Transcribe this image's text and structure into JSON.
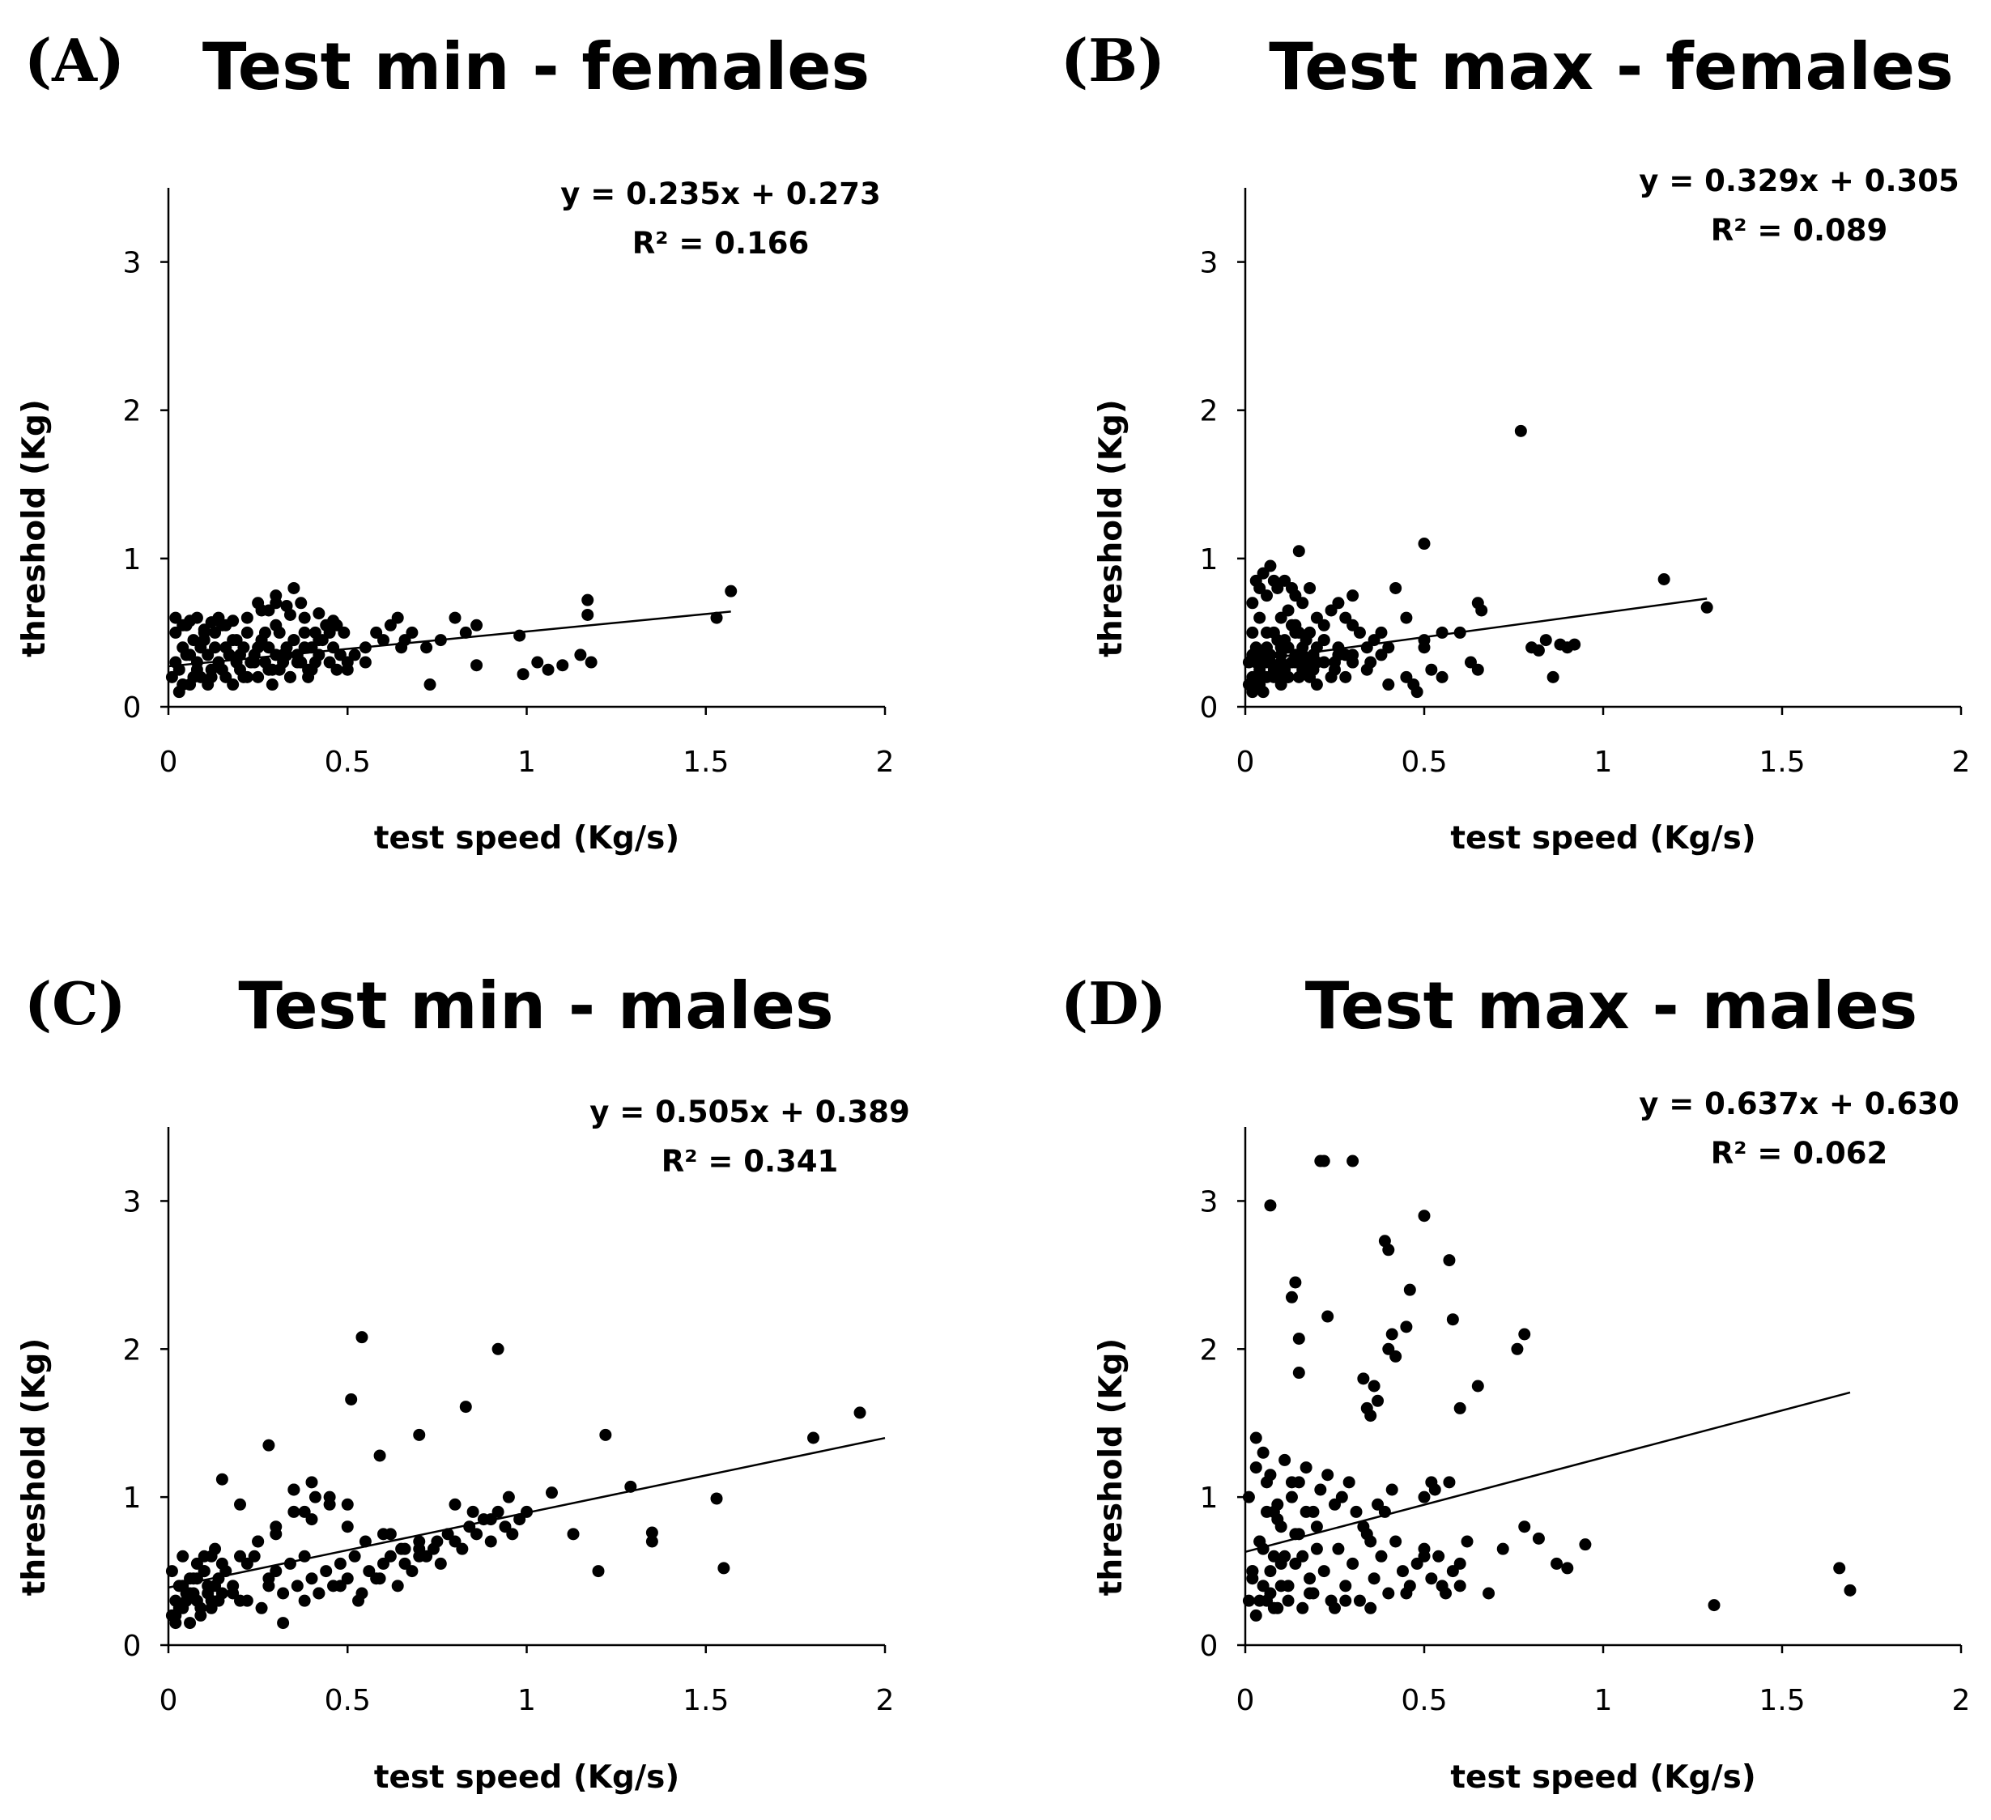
{
  "chart_data": [
    {
      "type": "scatter",
      "panel": "(A)",
      "title": "Test min - females",
      "xlabel": "test speed  (Kg/s)",
      "ylabel": "threshold  (Kg)",
      "xlim": [
        0,
        2
      ],
      "ylim": [
        0,
        3.5
      ],
      "xticks": [
        "0",
        "0.5",
        "1",
        "1.5",
        "2"
      ],
      "yticks": [
        "0",
        "1",
        "2",
        "3"
      ],
      "equation": "y = 0.235x + 0.273",
      "r_squared": "R² = 0.166",
      "trendline": {
        "slope": 0.235,
        "intercept": 0.273,
        "x_range": [
          0,
          1.57
        ]
      },
      "legend": "top-right",
      "points": {
        "x": [
          0.01,
          0.02,
          0.03,
          0.04,
          0.05,
          0.06,
          0.07,
          0.08,
          0.09,
          0.1,
          0.11,
          0.12,
          0.13,
          0.14,
          0.15,
          0.16,
          0.17,
          0.18,
          0.19,
          0.2,
          0.21,
          0.22,
          0.23,
          0.24,
          0.25,
          0.26,
          0.27,
          0.28,
          0.29,
          0.3,
          0.31,
          0.32,
          0.33,
          0.34,
          0.35,
          0.36,
          0.37,
          0.38,
          0.39,
          0.4,
          0.41,
          0.42,
          0.43,
          0.44,
          0.45,
          0.46,
          0.47,
          0.48,
          0.49,
          0.5,
          0.02,
          0.04,
          0.06,
          0.08,
          0.1,
          0.12,
          0.14,
          0.16,
          0.18,
          0.2,
          0.22,
          0.24,
          0.26,
          0.28,
          0.3,
          0.32,
          0.34,
          0.36,
          0.38,
          0.4,
          0.03,
          0.05,
          0.07,
          0.09,
          0.11,
          0.13,
          0.15,
          0.17,
          0.19,
          0.21,
          0.23,
          0.25,
          0.27,
          0.29,
          0.31,
          0.33,
          0.35,
          0.37,
          0.39,
          0.41,
          0.02,
          0.04,
          0.06,
          0.08,
          0.1,
          0.12,
          0.14,
          0.16,
          0.18,
          0.22,
          0.26,
          0.3,
          0.34,
          0.38,
          0.42,
          0.46,
          0.3,
          0.33,
          0.35,
          0.37,
          0.25,
          0.28,
          0.42,
          0.45,
          0.47,
          0.52,
          0.55,
          0.58,
          0.6,
          0.62,
          0.64,
          0.66,
          0.68,
          0.72,
          0.76,
          0.8,
          0.83,
          0.86,
          0.98,
          0.99,
          1.03,
          1.06,
          1.1,
          1.15,
          1.17,
          1.17,
          1.18,
          1.53,
          1.57,
          0.73,
          0.86,
          0.55,
          0.65,
          0.5
        ],
        "y": [
          0.2,
          0.3,
          0.25,
          0.4,
          0.35,
          0.15,
          0.45,
          0.3,
          0.2,
          0.5,
          0.35,
          0.25,
          0.4,
          0.3,
          0.55,
          0.2,
          0.35,
          0.45,
          0.3,
          0.25,
          0.4,
          0.5,
          0.3,
          0.35,
          0.2,
          0.45,
          0.3,
          0.4,
          0.25,
          0.35,
          0.5,
          0.3,
          0.4,
          0.2,
          0.45,
          0.35,
          0.3,
          0.5,
          0.25,
          0.4,
          0.3,
          0.35,
          0.45,
          0.55,
          0.3,
          0.4,
          0.25,
          0.35,
          0.5,
          0.3,
          0.5,
          0.15,
          0.35,
          0.25,
          0.45,
          0.2,
          0.3,
          0.4,
          0.15,
          0.35,
          0.2,
          0.3,
          0.45,
          0.25,
          0.55,
          0.35,
          0.2,
          0.3,
          0.4,
          0.25,
          0.1,
          0.55,
          0.2,
          0.4,
          0.15,
          0.5,
          0.25,
          0.35,
          0.45,
          0.2,
          0.3,
          0.4,
          0.5,
          0.15,
          0.25,
          0.35,
          0.45,
          0.3,
          0.2,
          0.5,
          0.6,
          0.55,
          0.58,
          0.6,
          0.52,
          0.57,
          0.6,
          0.55,
          0.58,
          0.6,
          0.65,
          0.7,
          0.62,
          0.6,
          0.63,
          0.58,
          0.75,
          0.68,
          0.8,
          0.7,
          0.7,
          0.65,
          0.45,
          0.5,
          0.55,
          0.35,
          0.4,
          0.5,
          0.45,
          0.55,
          0.6,
          0.45,
          0.5,
          0.4,
          0.45,
          0.6,
          0.5,
          0.55,
          0.48,
          0.22,
          0.3,
          0.25,
          0.28,
          0.35,
          0.62,
          0.72,
          0.3,
          0.6,
          0.78,
          0.15,
          0.28,
          0.3,
          0.4,
          0.25
        ]
      }
    },
    {
      "type": "scatter",
      "panel": "(B)",
      "title": "Test max - females",
      "xlabel": "test speed  (Kg/s)",
      "ylabel": "threshold  (Kg)",
      "xlim": [
        0,
        2
      ],
      "ylim": [
        0,
        3.5
      ],
      "xticks": [
        "0",
        "0.5",
        "1",
        "1.5",
        "2"
      ],
      "yticks": [
        "0",
        "1",
        "2",
        "3"
      ],
      "equation": "y = 0.329x + 0.305",
      "r_squared": "R² = 0.089",
      "trendline": {
        "slope": 0.329,
        "intercept": 0.305,
        "x_range": [
          0,
          1.29
        ]
      },
      "legend": "top-right",
      "points": {
        "x": [
          0.01,
          0.02,
          0.03,
          0.04,
          0.05,
          0.06,
          0.07,
          0.08,
          0.09,
          0.1,
          0.11,
          0.12,
          0.13,
          0.14,
          0.15,
          0.16,
          0.17,
          0.18,
          0.19,
          0.2,
          0.01,
          0.02,
          0.03,
          0.04,
          0.05,
          0.06,
          0.07,
          0.08,
          0.09,
          0.1,
          0.11,
          0.12,
          0.13,
          0.14,
          0.15,
          0.16,
          0.17,
          0.18,
          0.19,
          0.2,
          0.22,
          0.24,
          0.26,
          0.28,
          0.3,
          0.32,
          0.34,
          0.36,
          0.38,
          0.4,
          0.02,
          0.04,
          0.06,
          0.08,
          0.1,
          0.12,
          0.14,
          0.16,
          0.18,
          0.2,
          0.22,
          0.24,
          0.26,
          0.28,
          0.3,
          0.03,
          0.05,
          0.07,
          0.09,
          0.11,
          0.13,
          0.15,
          0.02,
          0.04,
          0.06,
          0.08,
          0.1,
          0.12,
          0.14,
          0.16,
          0.18,
          0.2,
          0.22,
          0.25,
          0.28,
          0.3,
          0.35,
          0.4,
          0.42,
          0.45,
          0.48,
          0.5,
          0.52,
          0.55,
          0.6,
          0.63,
          0.65,
          0.66,
          0.65,
          0.77,
          0.8,
          0.82,
          0.84,
          0.86,
          0.88,
          0.9,
          0.92,
          1.17,
          1.29,
          0.5,
          0.15,
          0.09,
          0.05,
          0.3,
          0.25,
          0.45,
          0.47,
          0.5,
          0.55,
          0.02,
          0.06,
          0.1,
          0.14,
          0.18,
          0.22,
          0.26,
          0.3,
          0.34,
          0.38
        ],
        "y": [
          0.3,
          0.2,
          0.4,
          0.25,
          0.35,
          0.5,
          0.3,
          0.2,
          0.45,
          0.35,
          0.25,
          0.4,
          0.3,
          0.55,
          0.2,
          0.35,
          0.45,
          0.3,
          0.25,
          0.4,
          0.15,
          0.5,
          0.3,
          0.6,
          0.2,
          0.4,
          0.35,
          0.5,
          0.25,
          0.3,
          0.45,
          0.2,
          0.55,
          0.35,
          0.3,
          0.4,
          0.25,
          0.5,
          0.35,
          0.3,
          0.45,
          0.2,
          0.4,
          0.35,
          0.3,
          0.5,
          0.25,
          0.45,
          0.35,
          0.4,
          0.7,
          0.8,
          0.75,
          0.85,
          0.6,
          0.65,
          0.75,
          0.7,
          0.8,
          0.6,
          0.55,
          0.65,
          0.7,
          0.6,
          0.75,
          0.85,
          0.9,
          0.95,
          0.8,
          0.85,
          0.8,
          1.05,
          0.1,
          0.15,
          0.2,
          0.25,
          0.15,
          0.2,
          0.3,
          0.25,
          0.2,
          0.15,
          0.3,
          0.25,
          0.2,
          0.35,
          0.3,
          0.15,
          0.8,
          0.2,
          0.1,
          0.45,
          0.25,
          0.2,
          0.5,
          0.3,
          0.7,
          0.65,
          0.25,
          1.86,
          0.4,
          0.38,
          0.45,
          0.2,
          0.42,
          0.4,
          0.42,
          0.86,
          0.67,
          1.1,
          0.5,
          0.2,
          0.1,
          0.55,
          0.3,
          0.6,
          0.15,
          0.4,
          0.5,
          0.35,
          0.3,
          0.4,
          0.5,
          0.3,
          0.45,
          0.35,
          0.3,
          0.4,
          0.5
        ]
      }
    },
    {
      "type": "scatter",
      "panel": "(C)",
      "title": "Test min - males",
      "xlabel": "test speed  (Kg/s)",
      "ylabel": "threshold  (Kg)",
      "xlim": [
        0,
        2
      ],
      "ylim": [
        0,
        3.5
      ],
      "xticks": [
        "0",
        "0.5",
        "1",
        "1.5",
        "2"
      ],
      "yticks": [
        "0",
        "1",
        "2",
        "3"
      ],
      "equation": "y = 0.505x + 0.389",
      "r_squared": "R² = 0.341",
      "trendline": {
        "slope": 0.505,
        "intercept": 0.389,
        "x_range": [
          0,
          2
        ]
      },
      "legend": "top-right",
      "points": {
        "x": [
          0.01,
          0.02,
          0.03,
          0.04,
          0.05,
          0.06,
          0.07,
          0.08,
          0.09,
          0.1,
          0.11,
          0.12,
          0.13,
          0.14,
          0.15,
          0.01,
          0.02,
          0.03,
          0.04,
          0.05,
          0.06,
          0.07,
          0.08,
          0.09,
          0.1,
          0.11,
          0.12,
          0.13,
          0.14,
          0.15,
          0.16,
          0.18,
          0.2,
          0.22,
          0.24,
          0.26,
          0.28,
          0.3,
          0.32,
          0.34,
          0.36,
          0.38,
          0.4,
          0.42,
          0.44,
          0.46,
          0.48,
          0.5,
          0.52,
          0.54,
          0.56,
          0.58,
          0.6,
          0.62,
          0.64,
          0.66,
          0.68,
          0.7,
          0.72,
          0.74,
          0.76,
          0.78,
          0.8,
          0.82,
          0.84,
          0.86,
          0.88,
          0.9,
          0.92,
          0.94,
          0.96,
          0.98,
          0.2,
          0.25,
          0.3,
          0.35,
          0.4,
          0.45,
          0.5,
          0.55,
          0.6,
          0.65,
          0.7,
          0.75,
          0.8,
          0.85,
          0.9,
          0.95,
          1.0,
          0.15,
          0.2,
          0.25,
          0.3,
          0.35,
          0.4,
          0.45,
          0.5,
          0.18,
          0.22,
          0.28,
          0.32,
          0.38,
          0.42,
          0.48,
          0.53,
          0.59,
          0.28,
          0.51,
          0.54,
          0.59,
          0.7,
          0.83,
          0.92,
          1.07,
          1.13,
          1.2,
          1.22,
          1.29,
          1.35,
          1.35,
          1.53,
          1.55,
          1.8,
          1.93,
          0.02,
          0.04,
          0.06,
          0.08,
          0.1,
          0.12,
          0.35,
          0.38,
          0.41,
          0.62,
          0.66,
          0.7
        ],
        "y": [
          0.2,
          0.3,
          0.25,
          0.4,
          0.35,
          0.15,
          0.45,
          0.3,
          0.2,
          0.5,
          0.35,
          0.25,
          0.4,
          0.3,
          0.55,
          0.5,
          0.2,
          0.4,
          0.6,
          0.3,
          0.45,
          0.35,
          0.55,
          0.25,
          0.6,
          0.4,
          0.3,
          0.65,
          0.45,
          0.35,
          0.5,
          0.4,
          0.3,
          0.55,
          0.6,
          0.25,
          0.45,
          0.5,
          0.35,
          0.55,
          0.4,
          0.6,
          0.45,
          0.35,
          0.5,
          0.4,
          0.55,
          0.45,
          0.6,
          0.35,
          0.5,
          0.45,
          0.55,
          0.6,
          0.4,
          0.65,
          0.5,
          0.7,
          0.6,
          0.65,
          0.55,
          0.75,
          0.7,
          0.65,
          0.8,
          0.75,
          0.85,
          0.7,
          0.9,
          0.8,
          0.75,
          0.85,
          0.6,
          0.7,
          0.8,
          0.9,
          0.85,
          0.95,
          0.8,
          0.7,
          0.75,
          0.65,
          0.6,
          0.7,
          0.95,
          0.9,
          0.85,
          1.0,
          0.9,
          1.12,
          0.95,
          0.7,
          0.75,
          1.05,
          1.1,
          1.0,
          0.95,
          0.35,
          0.3,
          0.4,
          0.15,
          0.3,
          0.35,
          0.4,
          0.3,
          0.45,
          1.35,
          1.66,
          2.08,
          1.28,
          1.42,
          1.61,
          2.0,
          1.03,
          0.75,
          0.5,
          1.42,
          1.07,
          0.76,
          0.7,
          0.99,
          0.52,
          1.4,
          1.57,
          0.15,
          0.25,
          0.35,
          0.45,
          0.5,
          0.6,
          1.05,
          0.9,
          1.0,
          0.75,
          0.55,
          0.65
        ]
      }
    },
    {
      "type": "scatter",
      "panel": "(D)",
      "title": "Test max - males",
      "xlabel": "test speed  (Kg/s)",
      "ylabel": "threshold  (Kg)",
      "xlim": [
        0,
        2
      ],
      "ylim": [
        0,
        3.5
      ],
      "xticks": [
        "0",
        "0.5",
        "1",
        "1.5",
        "2"
      ],
      "yticks": [
        "0",
        "1",
        "2",
        "3"
      ],
      "equation": "y = 0.637x + 0.630",
      "r_squared": "R² = 0.062",
      "trendline": {
        "slope": 0.637,
        "intercept": 0.63,
        "x_range": [
          0,
          1.69
        ]
      },
      "legend": "top-right",
      "points": {
        "x": [
          0.01,
          0.02,
          0.03,
          0.04,
          0.05,
          0.06,
          0.07,
          0.08,
          0.09,
          0.1,
          0.01,
          0.02,
          0.03,
          0.04,
          0.05,
          0.06,
          0.07,
          0.08,
          0.09,
          0.1,
          0.11,
          0.12,
          0.13,
          0.14,
          0.15,
          0.16,
          0.17,
          0.18,
          0.19,
          0.2,
          0.02,
          0.04,
          0.06,
          0.08,
          0.1,
          0.12,
          0.14,
          0.16,
          0.18,
          0.2,
          0.22,
          0.24,
          0.26,
          0.28,
          0.3,
          0.32,
          0.34,
          0.36,
          0.38,
          0.4,
          0.42,
          0.44,
          0.46,
          0.48,
          0.5,
          0.52,
          0.54,
          0.56,
          0.58,
          0.6,
          0.03,
          0.05,
          0.07,
          0.09,
          0.11,
          0.13,
          0.15,
          0.17,
          0.19,
          0.21,
          0.23,
          0.25,
          0.27,
          0.29,
          0.31,
          0.33,
          0.35,
          0.37,
          0.39,
          0.41,
          0.07,
          0.13,
          0.14,
          0.15,
          0.15,
          0.22,
          0.23,
          0.33,
          0.34,
          0.35,
          0.36,
          0.37,
          0.4,
          0.41,
          0.42,
          0.45,
          0.46,
          0.5,
          0.53,
          0.57,
          0.58,
          0.6,
          0.65,
          0.76,
          0.78,
          0.21,
          0.3,
          0.39,
          0.4,
          0.5,
          0.52,
          0.57,
          0.62,
          0.68,
          0.72,
          0.78,
          0.82,
          0.87,
          0.9,
          0.95,
          1.31,
          1.66,
          1.69,
          0.5,
          0.55,
          0.6,
          0.45,
          0.35,
          0.28,
          0.25
        ],
        "y": [
          0.3,
          0.5,
          0.2,
          0.7,
          0.4,
          0.9,
          0.35,
          0.6,
          0.25,
          0.8,
          1.0,
          0.45,
          1.2,
          0.3,
          0.65,
          1.1,
          0.5,
          0.25,
          0.85,
          0.4,
          0.6,
          0.3,
          1.1,
          0.55,
          0.75,
          0.25,
          0.9,
          0.45,
          0.35,
          0.65,
          0.5,
          0.7,
          0.3,
          0.9,
          0.55,
          0.4,
          0.75,
          0.6,
          0.35,
          0.8,
          0.5,
          0.3,
          0.65,
          0.4,
          0.55,
          0.3,
          0.75,
          0.45,
          0.6,
          0.35,
          0.7,
          0.5,
          0.4,
          0.55,
          0.65,
          0.45,
          0.6,
          0.35,
          0.5,
          0.4,
          1.4,
          1.3,
          1.15,
          0.95,
          1.25,
          1.0,
          1.1,
          1.2,
          0.9,
          1.05,
          1.15,
          0.95,
          1.0,
          1.1,
          0.9,
          0.8,
          0.7,
          0.95,
          0.9,
          1.05,
          2.97,
          2.35,
          2.45,
          2.07,
          1.84,
          3.27,
          2.22,
          1.8,
          1.6,
          1.55,
          1.75,
          1.65,
          2.0,
          2.1,
          1.95,
          2.15,
          2.4,
          2.9,
          1.05,
          2.6,
          2.2,
          1.6,
          1.75,
          2.0,
          2.1,
          3.27,
          3.27,
          2.73,
          2.67,
          1.0,
          1.1,
          1.1,
          0.7,
          0.35,
          0.65,
          0.8,
          0.72,
          0.55,
          0.52,
          0.68,
          0.27,
          0.52,
          0.37,
          0.6,
          0.4,
          0.55,
          0.35,
          0.25,
          0.3,
          0.25
        ]
      }
    }
  ]
}
